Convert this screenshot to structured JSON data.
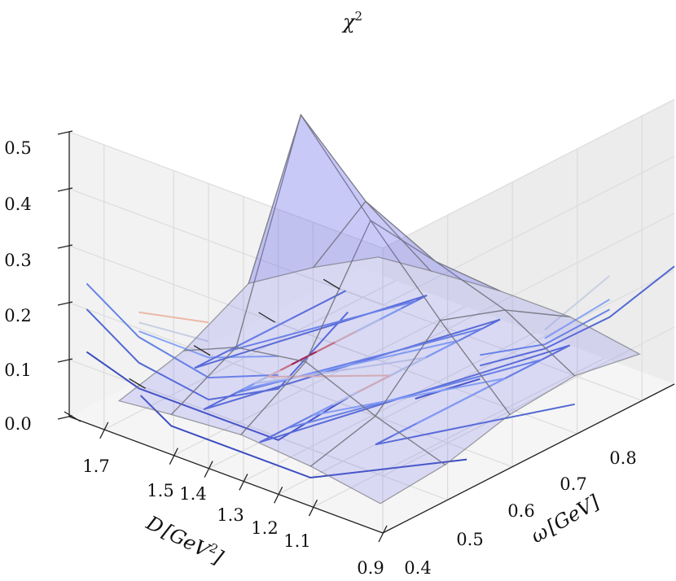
{
  "chart_data": {
    "type": "surface",
    "title": "",
    "axes": {
      "x": {
        "label_var": "ω",
        "label_unit": "[GeV]",
        "ticks": [
          "0.4",
          "0.5",
          "0.6",
          "0.7",
          "0.8"
        ],
        "range": [
          0.4,
          0.85
        ]
      },
      "y": {
        "label_var": "D",
        "label_unit": "[GeV",
        "label_sup": "2",
        "label_close": "]",
        "ticks": [
          "0.9",
          "1.1",
          "1.2",
          "1.3",
          "1.4",
          "1.5",
          "1.7"
        ],
        "range": [
          0.9,
          1.8
        ]
      },
      "z": {
        "label_var": "χ",
        "label_sup": "2",
        "ticks": [
          "0.0",
          "0.1",
          "0.2",
          "0.3",
          "0.4",
          "0.5"
        ],
        "range": [
          0.0,
          0.5
        ]
      }
    },
    "grid": true,
    "colormap": "coolwarm",
    "surface_color": "#7777ee",
    "omega": [
      0.45,
      0.55,
      0.65,
      0.75,
      0.85
    ],
    "D": [
      1.0,
      1.2,
      1.4,
      1.6,
      1.75
    ],
    "chi2": [
      [
        0.0,
        0.01,
        0.04,
        0.05,
        0.03
      ],
      [
        0.02,
        0.05,
        0.16,
        0.12,
        0.05
      ],
      [
        0.03,
        0.1,
        0.29,
        0.16,
        0.05
      ],
      [
        0.02,
        0.08,
        0.43,
        0.22,
        0.04
      ],
      [
        0.01,
        0.04,
        0.1,
        0.07,
        0.03
      ]
    ],
    "contour_levels": [
      0.02,
      0.05,
      0.08,
      0.12,
      0.18,
      0.25,
      0.32,
      0.38
    ]
  }
}
